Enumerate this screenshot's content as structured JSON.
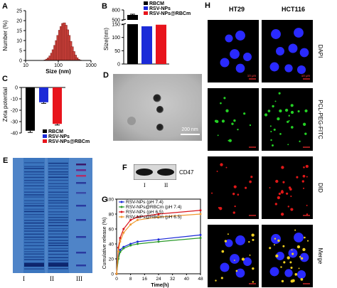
{
  "panel_letters": {
    "A": "A",
    "B": "B",
    "C": "C",
    "D": "D",
    "E": "E",
    "F": "F",
    "G": "G",
    "H": "H"
  },
  "colors": {
    "rbcm": "#000000",
    "rsv_nps": "#1c2bd8",
    "rsv_nps_rbcm": "#e8141c",
    "hist_fill": "#c8403a",
    "dapi": "#2a2aff",
    "ftc": "#24d024",
    "did": "#e01818",
    "merge_yellow": "#f0d020"
  },
  "panel_h": {
    "columns": [
      "HT29",
      "HCT116"
    ],
    "rows": [
      "DAPI",
      "PCL-PEG-FITC",
      "DID",
      "Merge"
    ],
    "scale_label": "10 μm"
  },
  "panel_d": {
    "scale_label": "200 nm"
  },
  "panel_e": {
    "lanes": [
      "I",
      "II",
      "III"
    ]
  },
  "panel_f": {
    "band_label": "CD47",
    "lanes": [
      "I",
      "II"
    ]
  },
  "chart_data": [
    {
      "panel": "A",
      "type": "bar",
      "xlabel": "Size (nm)",
      "ylabel": "Number (%)",
      "xscale": "log",
      "xlim": [
        10,
        1000
      ],
      "ylim": [
        0,
        25
      ],
      "xticks": [
        10,
        100,
        1000
      ],
      "yticks": [
        0,
        5,
        10,
        15,
        20,
        25
      ],
      "bins_x": [
        40,
        45,
        50,
        56,
        63,
        70,
        79,
        88,
        98,
        110,
        123,
        137,
        153,
        171,
        191,
        213,
        238,
        266,
        297,
        332,
        371,
        414,
        462
      ],
      "values": [
        0.3,
        0.7,
        1.3,
        2.3,
        3.7,
        5.4,
        7.6,
        10.0,
        12.6,
        15.2,
        17.1,
        18.6,
        18.9,
        17.7,
        15.4,
        12.6,
        9.6,
        6.9,
        4.5,
        2.7,
        1.4,
        0.6,
        0.2
      ]
    },
    {
      "panel": "B",
      "type": "bar",
      "ylabel": "Size(nm)",
      "categories": [
        "RBCM",
        "RSV-NPs",
        "RSV-NPs@RBCm"
      ],
      "legend": [
        "RBCM",
        "RSV-NPs",
        "RSV-NPs@RBCm"
      ],
      "legend_position": "top-right",
      "axis_break": true,
      "lower_ylim": [
        0,
        150
      ],
      "lower_yticks": [
        0,
        50,
        100,
        150
      ],
      "upper_ylim": [
        500,
        800
      ],
      "upper_yticks": [
        500,
        800
      ],
      "values": [
        650,
        142,
        148
      ],
      "errors": [
        22,
        2,
        3
      ]
    },
    {
      "panel": "C",
      "type": "bar",
      "ylabel": "Zeta potential",
      "categories": [
        "RBCM",
        "RSV-NPs",
        "RSV-NPs@RBCm"
      ],
      "legend": [
        "RBCM",
        "RSV-NPs",
        "RSV-NPs@RBCm"
      ],
      "legend_position": "bottom-right",
      "ylim": [
        -40,
        0
      ],
      "yticks": [
        0,
        -10,
        -20,
        -30,
        -40
      ],
      "values": [
        -38,
        -13,
        -32
      ],
      "errors": [
        1.5,
        1,
        1
      ]
    },
    {
      "panel": "G",
      "type": "line",
      "xlabel": "Time(h)",
      "ylabel": "Cumulative release (%)",
      "xlim": [
        0,
        48
      ],
      "ylim": [
        0,
        100
      ],
      "xticks": [
        0,
        8,
        16,
        24,
        32,
        40,
        48
      ],
      "yticks": [
        0,
        20,
        40,
        60,
        80,
        100
      ],
      "legend_position": "top-left",
      "x": [
        0,
        1,
        2,
        4,
        8,
        12,
        24,
        48
      ],
      "series": [
        {
          "name": "RSV-NPs (pH 7.4)",
          "color": "#1c2bd8",
          "values": [
            0,
            23,
            32,
            36,
            40,
            43,
            46,
            52
          ]
        },
        {
          "name": "RSV-NPs@RBCm (pH 7.4)",
          "color": "#2a9a2a",
          "values": [
            0,
            20,
            29,
            34,
            38,
            40,
            43,
            48
          ]
        },
        {
          "name": "RSV-NPs (pH 6.5)",
          "color": "#d8141c",
          "values": [
            0,
            35,
            48,
            60,
            72,
            76,
            80,
            85
          ]
        },
        {
          "name": "RSV-NPs@RBCm (pH 6.5)",
          "color": "#f09a30",
          "values": [
            0,
            30,
            43,
            55,
            66,
            72,
            76,
            80
          ]
        }
      ]
    }
  ]
}
